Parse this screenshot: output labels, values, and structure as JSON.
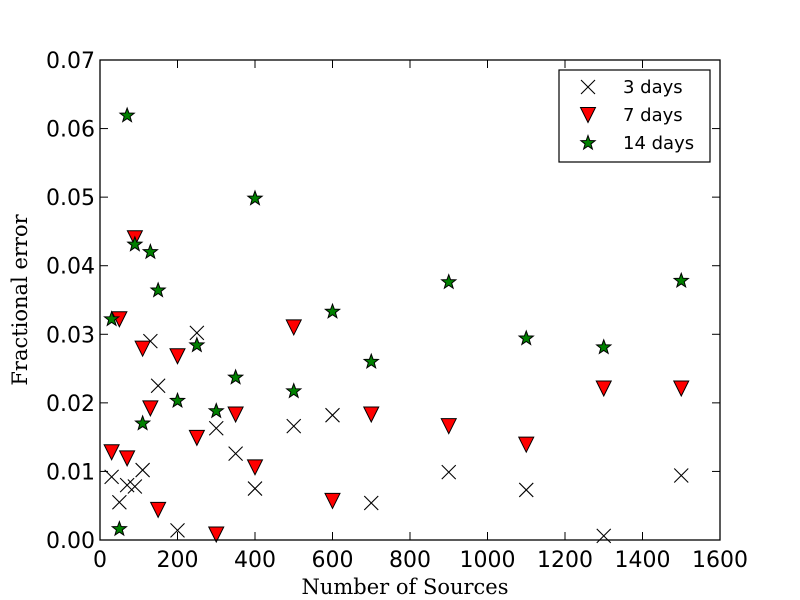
{
  "chart_data": {
    "type": "scatter",
    "title": "",
    "xlabel": "Number of Sources",
    "ylabel": "Fractional error",
    "xlim": [
      0,
      1600
    ],
    "ylim": [
      0,
      0.07
    ],
    "x_ticks": [
      0,
      200,
      400,
      600,
      800,
      1000,
      1200,
      1400,
      1600
    ],
    "x_tick_labels": [
      "0",
      "200",
      "400",
      "600",
      "800",
      "1000",
      "1200",
      "1400",
      "1600"
    ],
    "y_ticks": [
      0,
      0.01,
      0.02,
      0.03,
      0.04,
      0.05,
      0.06,
      0.07
    ],
    "y_tick_labels": [
      "0.00",
      "0.01",
      "0.02",
      "0.03",
      "0.04",
      "0.05",
      "0.06",
      "0.07"
    ],
    "grid": false,
    "legend_position": "top-right",
    "series": [
      {
        "name": "3 days",
        "marker": "x",
        "color": "#000000",
        "points": [
          [
            30,
            0.0092
          ],
          [
            50,
            0.0055
          ],
          [
            70,
            0.008
          ],
          [
            90,
            0.0078
          ],
          [
            110,
            0.0102
          ],
          [
            130,
            0.029
          ],
          [
            150,
            0.0225
          ],
          [
            200,
            0.0014
          ],
          [
            250,
            0.0302
          ],
          [
            300,
            0.0163
          ],
          [
            350,
            0.0126
          ],
          [
            400,
            0.0075
          ],
          [
            500,
            0.0166
          ],
          [
            600,
            0.0182
          ],
          [
            700,
            0.0054
          ],
          [
            900,
            0.0099
          ],
          [
            1100,
            0.0073
          ],
          [
            1300,
            0.0006
          ],
          [
            1500,
            0.0094
          ]
        ]
      },
      {
        "name": "7 days",
        "marker": "triangle-down",
        "color": "#ff0000",
        "points": [
          [
            30,
            0.0128
          ],
          [
            50,
            0.0322
          ],
          [
            70,
            0.0119
          ],
          [
            90,
            0.044
          ],
          [
            110,
            0.0279
          ],
          [
            130,
            0.0192
          ],
          [
            150,
            0.0044
          ],
          [
            200,
            0.0268
          ],
          [
            250,
            0.0149
          ],
          [
            300,
            0.0008
          ],
          [
            350,
            0.0183
          ],
          [
            400,
            0.0106
          ],
          [
            500,
            0.031
          ],
          [
            600,
            0.0057
          ],
          [
            700,
            0.0183
          ],
          [
            900,
            0.0166
          ],
          [
            1100,
            0.0139
          ],
          [
            1300,
            0.0221
          ],
          [
            1500,
            0.0221
          ]
        ]
      },
      {
        "name": "14 days",
        "marker": "star",
        "color": "#008000",
        "points": [
          [
            30,
            0.0322
          ],
          [
            50,
            0.0016
          ],
          [
            70,
            0.0619
          ],
          [
            90,
            0.0431
          ],
          [
            110,
            0.017
          ],
          [
            130,
            0.042
          ],
          [
            150,
            0.0364
          ],
          [
            200,
            0.0203
          ],
          [
            250,
            0.0284
          ],
          [
            300,
            0.0188
          ],
          [
            350,
            0.0237
          ],
          [
            400,
            0.0498
          ],
          [
            500,
            0.0217
          ],
          [
            600,
            0.0333
          ],
          [
            700,
            0.026
          ],
          [
            900,
            0.0376
          ],
          [
            1100,
            0.0294
          ],
          [
            1300,
            0.0281
          ],
          [
            1500,
            0.0378
          ]
        ]
      }
    ]
  }
}
